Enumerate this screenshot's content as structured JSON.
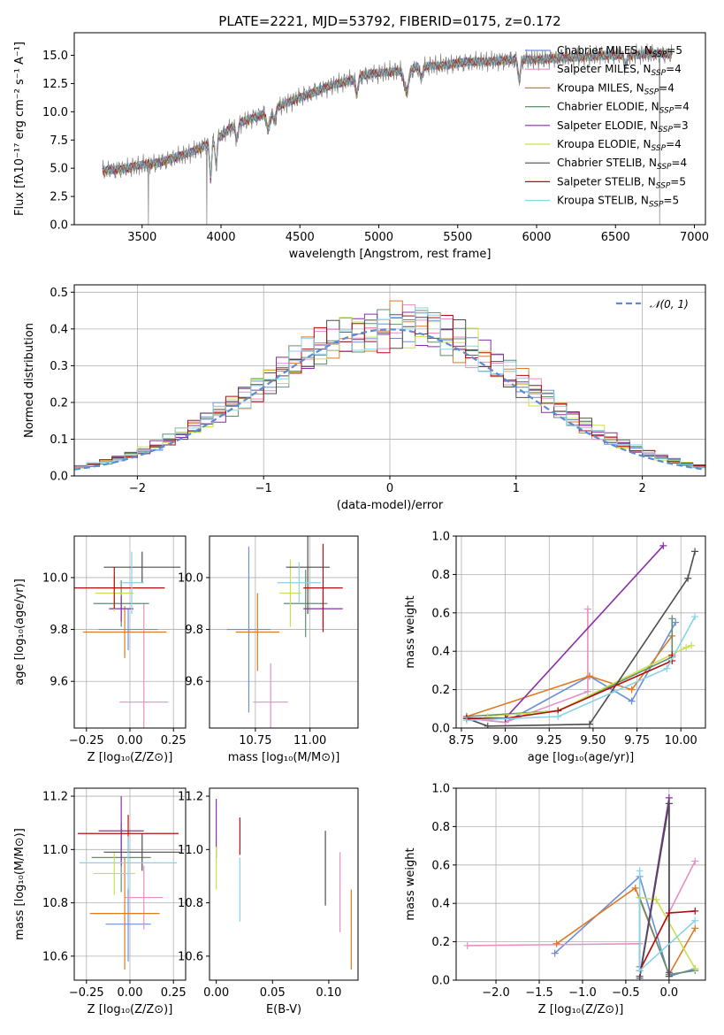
{
  "colors": [
    "#6b8fd6",
    "#e68fc3",
    "#dd7a22",
    "#5f8f6f",
    "#8a2ea8",
    "#c8e04e",
    "#4d4d4d",
    "#b00f0f",
    "#87d3e8"
  ],
  "chart_data": [
    {
      "id": "spectrum",
      "type": "line",
      "title": "PLATE=2221, MJD=53792, FIBERID=0175, z=0.172",
      "xlabel": "wavelength [Angstrom, rest frame]",
      "ylabel": "Flux [fλ10⁻¹⁷ erg cm⁻² s⁻¹ A⁻¹]",
      "xlim": [
        3070,
        7070
      ],
      "ylim": [
        0,
        17
      ],
      "xticks": [
        "3500",
        "4000",
        "4500",
        "5000",
        "5500",
        "6000",
        "6500",
        "7000"
      ],
      "yticks": [
        "0.0",
        "2.5",
        "5.0",
        "7.5",
        "10.0",
        "12.5",
        "15.0"
      ],
      "grid": false,
      "legend_position": "top-right",
      "observed_line_color": "#808080",
      "continuum": {
        "x": [
          3250,
          3400,
          3600,
          3800,
          3950,
          4100,
          4300,
          4500,
          4700,
          4900,
          5100,
          5300,
          5500,
          5700,
          5900,
          6100,
          6300,
          6500,
          6700,
          6850
        ],
        "y": [
          4.8,
          5.0,
          5.5,
          6.3,
          7.4,
          8.9,
          10.0,
          11.3,
          12.3,
          13.2,
          13.6,
          14.0,
          14.3,
          14.5,
          14.6,
          14.7,
          14.9,
          15.0,
          15.1,
          15.1
        ]
      },
      "series": [
        {
          "name": "Chabrier MILES, N",
          "sub": "SSP",
          "eq": "=5"
        },
        {
          "name": "Salpeter MILES, N",
          "sub": "SSP",
          "eq": "=4"
        },
        {
          "name": "Kroupa MILES, N",
          "sub": "SSP",
          "eq": "=4"
        },
        {
          "name": "Chabrier ELODIE, N",
          "sub": "SSP",
          "eq": "=4"
        },
        {
          "name": "Salpeter ELODIE, N",
          "sub": "SSP",
          "eq": "=3"
        },
        {
          "name": "Kroupa ELODIE, N",
          "sub": "SSP",
          "eq": "=4"
        },
        {
          "name": "Chabrier STELIB, N",
          "sub": "SSP",
          "eq": "=4"
        },
        {
          "name": "Salpeter STELIB, N",
          "sub": "SSP",
          "eq": "=5"
        },
        {
          "name": "Kroupa STELIB, N",
          "sub": "SSP",
          "eq": "=5"
        }
      ]
    },
    {
      "id": "residuals",
      "type": "line",
      "xlabel": "(data-model)/error",
      "ylabel": "Normed distribution",
      "xlim": [
        -2.5,
        2.5
      ],
      "ylim": [
        0,
        0.52
      ],
      "xticks": [
        -2,
        -1,
        0,
        1,
        2
      ],
      "xtick_labels": [
        "−2",
        "−1",
        "0",
        "1",
        "2"
      ],
      "yticks": [
        0.0,
        0.1,
        0.2,
        0.3,
        0.4,
        0.5
      ],
      "ytick_labels": [
        "0.0",
        "0.1",
        "0.2",
        "0.3",
        "0.4",
        "0.5"
      ],
      "grid": true,
      "legend": "𝒩(0, 1)",
      "legend_position": "top-right",
      "gaussian_color": "#5b8bd6",
      "bin_width": 0.1,
      "bins_start": -2.5
    },
    {
      "id": "age-vs-Z",
      "type": "scatter",
      "xlabel": "Z [log₁₀(Z/Z⊙)]",
      "ylabel": "age  [log₁₀(age/yr)]",
      "xlim": [
        -0.32,
        0.32
      ],
      "ylim": [
        9.42,
        10.16
      ],
      "xticks": [
        -0.25,
        0.0,
        0.25
      ],
      "xtick_labels": [
        "−0.25",
        "0.00",
        "0.25"
      ],
      "yticks": [
        9.6,
        9.8,
        10.0
      ],
      "ytick_labels": [
        "9.6",
        "9.8",
        "10.0"
      ],
      "grid": true,
      "points": [
        {
          "x": -0.01,
          "y": 9.8,
          "xerr": 0.17,
          "yerr": 0.08
        },
        {
          "x": 0.08,
          "y": 9.52,
          "xerr": 0.14,
          "yerr": 0.38
        },
        {
          "x": -0.03,
          "y": 9.79,
          "xerr": 0.24,
          "yerr": 0.1
        },
        {
          "x": -0.05,
          "y": 9.9,
          "xerr": 0.16,
          "yerr": 0.09
        },
        {
          "x": -0.05,
          "y": 9.88,
          "xerr": 0.07,
          "yerr": 0.05
        },
        {
          "x": -0.09,
          "y": 9.94,
          "xerr": 0.11,
          "yerr": 0.07
        },
        {
          "x": 0.07,
          "y": 10.04,
          "xerr": 0.22,
          "yerr": 0.06
        },
        {
          "x": -0.09,
          "y": 9.96,
          "xerr": 0.29,
          "yerr": 0.08
        },
        {
          "x": 0.01,
          "y": 9.98,
          "xerr": 0.07,
          "yerr": 0.12
        }
      ]
    },
    {
      "id": "age-vs-mass",
      "type": "scatter",
      "xlabel": "mass [log₁₀(M/M⊙)]",
      "ylabel": "",
      "xlim": [
        10.54,
        11.22
      ],
      "ylim": [
        9.42,
        10.16
      ],
      "xticks": [
        10.75,
        11.0
      ],
      "xtick_labels": [
        "10.75",
        "11.00"
      ],
      "yticks": [
        9.6,
        9.8,
        10.0
      ],
      "ytick_labels": [
        "9.6",
        "9.8",
        "10.0"
      ],
      "grid": true,
      "points": [
        {
          "x": 10.72,
          "y": 9.8,
          "xerr": 0.1,
          "yerr": 0.32
        },
        {
          "x": 10.82,
          "y": 9.52,
          "xerr": 0.08,
          "yerr": 0.15
        },
        {
          "x": 10.76,
          "y": 9.79,
          "xerr": 0.1,
          "yerr": 0.15
        },
        {
          "x": 10.98,
          "y": 9.9,
          "xerr": 0.1,
          "yerr": 0.13
        },
        {
          "x": 11.06,
          "y": 9.88,
          "xerr": 0.09,
          "yerr": 0.07
        },
        {
          "x": 10.91,
          "y": 9.94,
          "xerr": 0.05,
          "yerr": 0.13
        },
        {
          "x": 10.99,
          "y": 10.04,
          "xerr": 0.1,
          "yerr": 0.18
        },
        {
          "x": 11.06,
          "y": 9.96,
          "xerr": 0.09,
          "yerr": 0.17
        },
        {
          "x": 10.95,
          "y": 9.98,
          "xerr": 0.1,
          "yerr": 0.08
        }
      ]
    },
    {
      "id": "mw-vs-age",
      "type": "line",
      "xlabel": "age  [log₁₀(age/yr)]",
      "ylabel": "mass weight",
      "xlim": [
        8.72,
        10.14
      ],
      "ylim": [
        0,
        1.0
      ],
      "xticks": [
        8.75,
        9.0,
        9.25,
        9.5,
        9.75,
        10.0
      ],
      "xtick_labels": [
        "8.75",
        "9.00",
        "9.25",
        "9.50",
        "9.75",
        "10.00"
      ],
      "yticks": [
        0,
        0.2,
        0.4,
        0.6,
        0.8,
        1.0
      ],
      "ytick_labels": [
        "0.0",
        "0.2",
        "0.4",
        "0.6",
        "0.8",
        "1.0"
      ],
      "grid": true,
      "series": [
        {
          "x": [
            8.78,
            9.0,
            9.48,
            9.72,
            9.97
          ],
          "y": [
            0.05,
            0.03,
            0.27,
            0.14,
            0.55
          ]
        },
        {
          "x": [
            8.78,
            9.0,
            9.47,
            9.47
          ],
          "y": [
            0.05,
            0.03,
            0.19,
            0.62
          ]
        },
        {
          "x": [
            8.78,
            9.48,
            9.72,
            9.95
          ],
          "y": [
            0.06,
            0.27,
            0.2,
            0.48
          ]
        },
        {
          "x": [
            8.78,
            9.3,
            9.95,
            9.95
          ],
          "y": [
            0.06,
            0.09,
            0.37,
            0.57
          ]
        },
        {
          "x": [
            8.78,
            9.0,
            9.9
          ],
          "y": [
            0.05,
            0.05,
            0.95
          ]
        },
        {
          "x": [
            8.9,
            9.3,
            10.03,
            10.06
          ],
          "y": [
            0.06,
            0.09,
            0.42,
            0.43
          ]
        },
        {
          "x": [
            8.78,
            8.9,
            9.48,
            10.04,
            10.08
          ],
          "y": [
            0.05,
            0.01,
            0.02,
            0.78,
            0.92
          ]
        },
        {
          "x": [
            8.78,
            9.0,
            9.3,
            9.95,
            9.95
          ],
          "y": [
            0.05,
            0.05,
            0.09,
            0.35,
            0.38
          ]
        },
        {
          "x": [
            8.78,
            9.3,
            9.92,
            10.08
          ],
          "y": [
            0.04,
            0.06,
            0.31,
            0.58
          ]
        }
      ]
    },
    {
      "id": "mass-vs-Z",
      "type": "scatter",
      "xlabel": "Z [log₁₀(Z/Z⊙)]",
      "ylabel": "mass [log₁₀(M/M⊙)]",
      "xlim": [
        -0.32,
        0.32
      ],
      "ylim": [
        10.51,
        11.23
      ],
      "xticks": [
        -0.25,
        0.0,
        0.25
      ],
      "xtick_labels": [
        "−0.25",
        "0.00",
        "0.25"
      ],
      "yticks": [
        10.6,
        10.8,
        11.0,
        11.2
      ],
      "ytick_labels": [
        "10.6",
        "10.8",
        "11.0",
        "11.2"
      ],
      "grid": true,
      "points": [
        {
          "x": -0.01,
          "y": 10.72,
          "xerr": 0.13,
          "yerr": 0.14
        },
        {
          "x": 0.08,
          "y": 10.82,
          "xerr": 0.11,
          "yerr": 0.12
        },
        {
          "x": -0.03,
          "y": 10.76,
          "xerr": 0.2,
          "yerr": 0.21
        },
        {
          "x": -0.05,
          "y": 10.97,
          "xerr": 0.17,
          "yerr": 0.13
        },
        {
          "x": -0.05,
          "y": 11.07,
          "xerr": 0.13,
          "yerr": 0.13
        },
        {
          "x": -0.09,
          "y": 10.91,
          "xerr": 0.12,
          "yerr": 0.08
        },
        {
          "x": 0.07,
          "y": 10.99,
          "xerr": 0.22,
          "yerr": 0.07
        },
        {
          "x": -0.01,
          "y": 11.06,
          "xerr": 0.29,
          "yerr": 0.07
        },
        {
          "x": -0.01,
          "y": 10.95,
          "xerr": 0.28,
          "yerr": 0.1
        }
      ]
    },
    {
      "id": "mass-vs-ebv",
      "type": "scatter",
      "xlabel": "E(B-V)",
      "ylabel": "",
      "xlim": [
        -0.006,
        0.126
      ],
      "ylim": [
        10.51,
        11.23
      ],
      "xticks": [
        0.0,
        0.05,
        0.1
      ],
      "xtick_labels": [
        "0.00",
        "0.05",
        "0.10"
      ],
      "yticks": [
        10.6,
        10.8,
        11.0,
        11.2
      ],
      "ytick_labels": [
        "10.6",
        "10.8",
        "11.0",
        "11.2"
      ],
      "grid": false,
      "points": [
        {
          "x": 0.0,
          "y": 11.08,
          "xerr": 0,
          "yerr": 0.11
        },
        {
          "x": 0.0,
          "y": 10.93,
          "xerr": 0,
          "yerr": 0.08
        },
        {
          "x": 0.021,
          "y": 11.05,
          "xerr": 0,
          "yerr": 0.07
        },
        {
          "x": 0.021,
          "y": 10.85,
          "xerr": 0,
          "yerr": 0.12
        },
        {
          "x": 0.097,
          "y": 10.93,
          "xerr": 0,
          "yerr": 0.14
        },
        {
          "x": 0.11,
          "y": 10.84,
          "xerr": 0,
          "yerr": 0.15
        },
        {
          "x": 0.12,
          "y": 10.7,
          "xerr": 0,
          "yerr": 0.15
        }
      ]
    },
    {
      "id": "mw-vs-Z",
      "type": "line",
      "xlabel": "Z [log₁₀(Z/Z⊙)]",
      "ylabel": "mass weight",
      "xlim": [
        -2.46,
        0.42
      ],
      "ylim": [
        0,
        1.0
      ],
      "xticks": [
        -2.0,
        -1.5,
        -1.0,
        -0.5,
        0.0
      ],
      "xtick_labels": [
        "−2.0",
        "−1.5",
        "−1.0",
        "−0.5",
        "0.0"
      ],
      "yticks": [
        0,
        0.2,
        0.4,
        0.6,
        0.8,
        1.0
      ],
      "ytick_labels": [
        "0.0",
        "0.2",
        "0.4",
        "0.6",
        "0.8",
        "1.0"
      ],
      "grid": true,
      "series": [
        {
          "x": [
            -1.32,
            -0.34,
            0.0,
            0.3
          ],
          "y": [
            0.14,
            0.54,
            0.02,
            0.06
          ]
        },
        {
          "x": [
            -2.33,
            -0.34,
            -0.34,
            0.3
          ],
          "y": [
            0.18,
            0.19,
            0.05,
            0.62
          ]
        },
        {
          "x": [
            -1.3,
            -0.39,
            0.0,
            0.3
          ],
          "y": [
            0.19,
            0.48,
            0.03,
            0.27
          ]
        },
        {
          "x": [
            -0.34,
            -0.34,
            0.0,
            0.3
          ],
          "y": [
            0.07,
            0.43,
            0.03,
            0.05
          ]
        },
        {
          "x": [
            -0.34,
            0.0,
            0.0
          ],
          "y": [
            0.02,
            0.95,
            0.04
          ]
        },
        {
          "x": [
            -0.34,
            -0.15,
            0.3
          ],
          "y": [
            0.43,
            0.42,
            0.06
          ]
        },
        {
          "x": [
            -0.34,
            0.0,
            0.0
          ],
          "y": [
            0.01,
            0.92,
            0.02
          ]
        },
        {
          "x": [
            -0.34,
            0.0,
            0.3
          ],
          "y": [
            0.05,
            0.35,
            0.36
          ]
        },
        {
          "x": [
            -0.34,
            -0.34,
            0.3
          ],
          "y": [
            0.57,
            0.05,
            0.31
          ]
        }
      ]
    }
  ]
}
